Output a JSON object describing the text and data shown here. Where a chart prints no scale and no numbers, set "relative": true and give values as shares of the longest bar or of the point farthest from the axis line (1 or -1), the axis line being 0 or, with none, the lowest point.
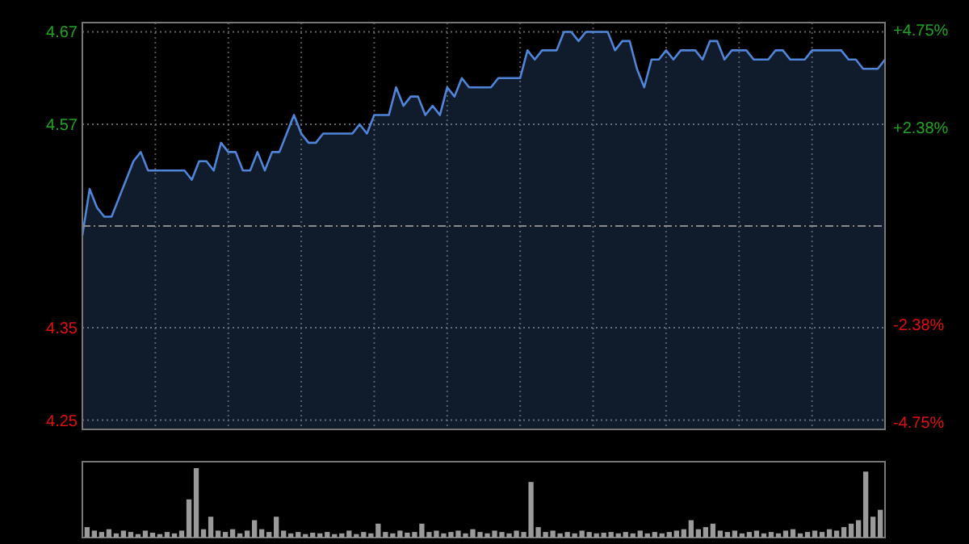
{
  "chart_data": [
    {
      "type": "area",
      "categories": [
        null,
        null,
        null,
        null,
        null,
        null,
        null,
        null,
        null,
        null,
        null,
        null,
        null,
        null,
        null,
        null,
        null,
        null,
        null,
        null,
        null,
        null,
        null,
        null,
        null,
        null,
        null,
        null,
        null,
        null,
        null,
        null,
        null,
        null,
        null,
        null,
        null,
        null,
        null,
        null,
        null,
        null,
        null,
        null,
        null,
        null,
        null,
        null,
        null,
        null,
        null,
        null,
        null,
        null,
        null,
        null,
        null,
        null,
        null,
        null,
        null,
        null,
        null,
        null,
        null,
        null,
        null,
        null,
        null,
        null,
        null,
        null,
        null,
        null,
        null,
        null,
        null,
        null,
        null,
        null,
        null,
        null,
        null,
        null,
        null,
        null,
        null,
        null,
        null,
        null,
        null,
        null,
        null,
        null,
        null,
        null,
        null,
        null,
        null,
        null,
        null,
        null,
        null,
        null,
        null,
        null,
        null,
        null,
        null,
        null,
        null
      ],
      "ylim": [
        4.24,
        4.68
      ],
      "yticks": [
        4.25,
        4.35,
        4.57,
        4.67
      ],
      "y2lim": [
        -4.93,
        4.93
      ],
      "y2ticks": [
        {
          "value": -4.75,
          "label": "-4.75%"
        },
        {
          "value": -2.38,
          "label": "-2.38%"
        },
        {
          "value": 2.38,
          "label": "+2.38%"
        },
        {
          "value": 4.75,
          "label": "+4.75%"
        }
      ],
      "grid": true,
      "tick_labels": "y",
      "ref_lines": [
        {
          "axis": "y",
          "value": 4.46,
          "color": "#8a8a8a",
          "line_style": "dashed"
        }
      ],
      "series": [
        {
          "color": "#4f86d9",
          "values": [
            4.45,
            4.5,
            4.48,
            4.47,
            4.47,
            4.49,
            4.51,
            4.53,
            4.54,
            4.52,
            4.52,
            4.52,
            4.52,
            4.52,
            4.52,
            4.51,
            4.53,
            4.53,
            4.52,
            4.55,
            4.54,
            4.54,
            4.52,
            4.52,
            4.54,
            4.52,
            4.54,
            4.54,
            4.56,
            4.58,
            4.56,
            4.55,
            4.55,
            4.56,
            4.56,
            4.56,
            4.56,
            4.56,
            4.57,
            4.56,
            4.58,
            4.58,
            4.58,
            4.61,
            4.59,
            4.6,
            4.6,
            4.58,
            4.59,
            4.58,
            4.61,
            4.6,
            4.62,
            4.61,
            4.61,
            4.61,
            4.61,
            4.62,
            4.62,
            4.62,
            4.62,
            4.65,
            4.64,
            4.65,
            4.65,
            4.65,
            4.67,
            4.67,
            4.66,
            4.67,
            4.67,
            4.67,
            4.67,
            4.65,
            4.66,
            4.66,
            4.63,
            4.61,
            4.64,
            4.64,
            4.65,
            4.64,
            4.65,
            4.65,
            4.65,
            4.64,
            4.66,
            4.66,
            4.64,
            4.65,
            4.65,
            4.65,
            4.64,
            4.64,
            4.64,
            4.65,
            4.65,
            4.64,
            4.64,
            4.64,
            4.65,
            4.65,
            4.65,
            4.65,
            4.65,
            4.64,
            4.64,
            4.63,
            4.63,
            4.63,
            4.64
          ]
        }
      ]
    },
    {
      "type": "bar",
      "relative": true,
      "categories": [
        null,
        null,
        null,
        null,
        null,
        null,
        null,
        null,
        null,
        null,
        null,
        null,
        null,
        null,
        null,
        null,
        null,
        null,
        null,
        null,
        null,
        null,
        null,
        null,
        null,
        null,
        null,
        null,
        null,
        null,
        null,
        null,
        null,
        null,
        null,
        null,
        null,
        null,
        null,
        null,
        null,
        null,
        null,
        null,
        null,
        null,
        null,
        null,
        null,
        null,
        null,
        null,
        null,
        null,
        null,
        null,
        null,
        null,
        null,
        null,
        null,
        null,
        null,
        null,
        null,
        null,
        null,
        null,
        null,
        null,
        null,
        null,
        null,
        null,
        null,
        null,
        null,
        null,
        null,
        null,
        null,
        null,
        null,
        null,
        null,
        null,
        null,
        null,
        null,
        null,
        null,
        null,
        null,
        null,
        null,
        null,
        null,
        null,
        null,
        null,
        null,
        null,
        null,
        null,
        null,
        null,
        null,
        null,
        null,
        null
      ],
      "color": "#9a9a9a",
      "values": [
        0.15,
        0.1,
        0.08,
        0.12,
        0.06,
        0.1,
        0.08,
        0.05,
        0.1,
        0.07,
        0.05,
        0.08,
        0.06,
        0.1,
        0.55,
        1,
        0.12,
        0.3,
        0.1,
        0.08,
        0.12,
        0.06,
        0.1,
        0.25,
        0.12,
        0.08,
        0.3,
        0.1,
        0.06,
        0.08,
        0.05,
        0.07,
        0.06,
        0.08,
        0.05,
        0.06,
        0.1,
        0.05,
        0.08,
        0.06,
        0.2,
        0.08,
        0.06,
        0.1,
        0.07,
        0.08,
        0.2,
        0.08,
        0.1,
        0.06,
        0.08,
        0.1,
        0.06,
        0.12,
        0.08,
        0.06,
        0.1,
        0.08,
        0.06,
        0.1,
        0.08,
        0.8,
        0.15,
        0.08,
        0.1,
        0.06,
        0.08,
        0.06,
        0.1,
        0.08,
        0.06,
        0.07,
        0.08,
        0.06,
        0.08,
        0.06,
        0.1,
        0.06,
        0.08,
        0.06,
        0.08,
        0.1,
        0.12,
        0.25,
        0.12,
        0.15,
        0.2,
        0.1,
        0.08,
        0.1,
        0.06,
        0.08,
        0.1,
        0.06,
        0.08,
        0.06,
        0.1,
        0.12,
        0.06,
        0.08,
        0.1,
        0.08,
        0.12,
        0.1,
        0.15,
        0.2,
        0.25,
        0.95,
        0.3,
        0.4
      ]
    }
  ]
}
